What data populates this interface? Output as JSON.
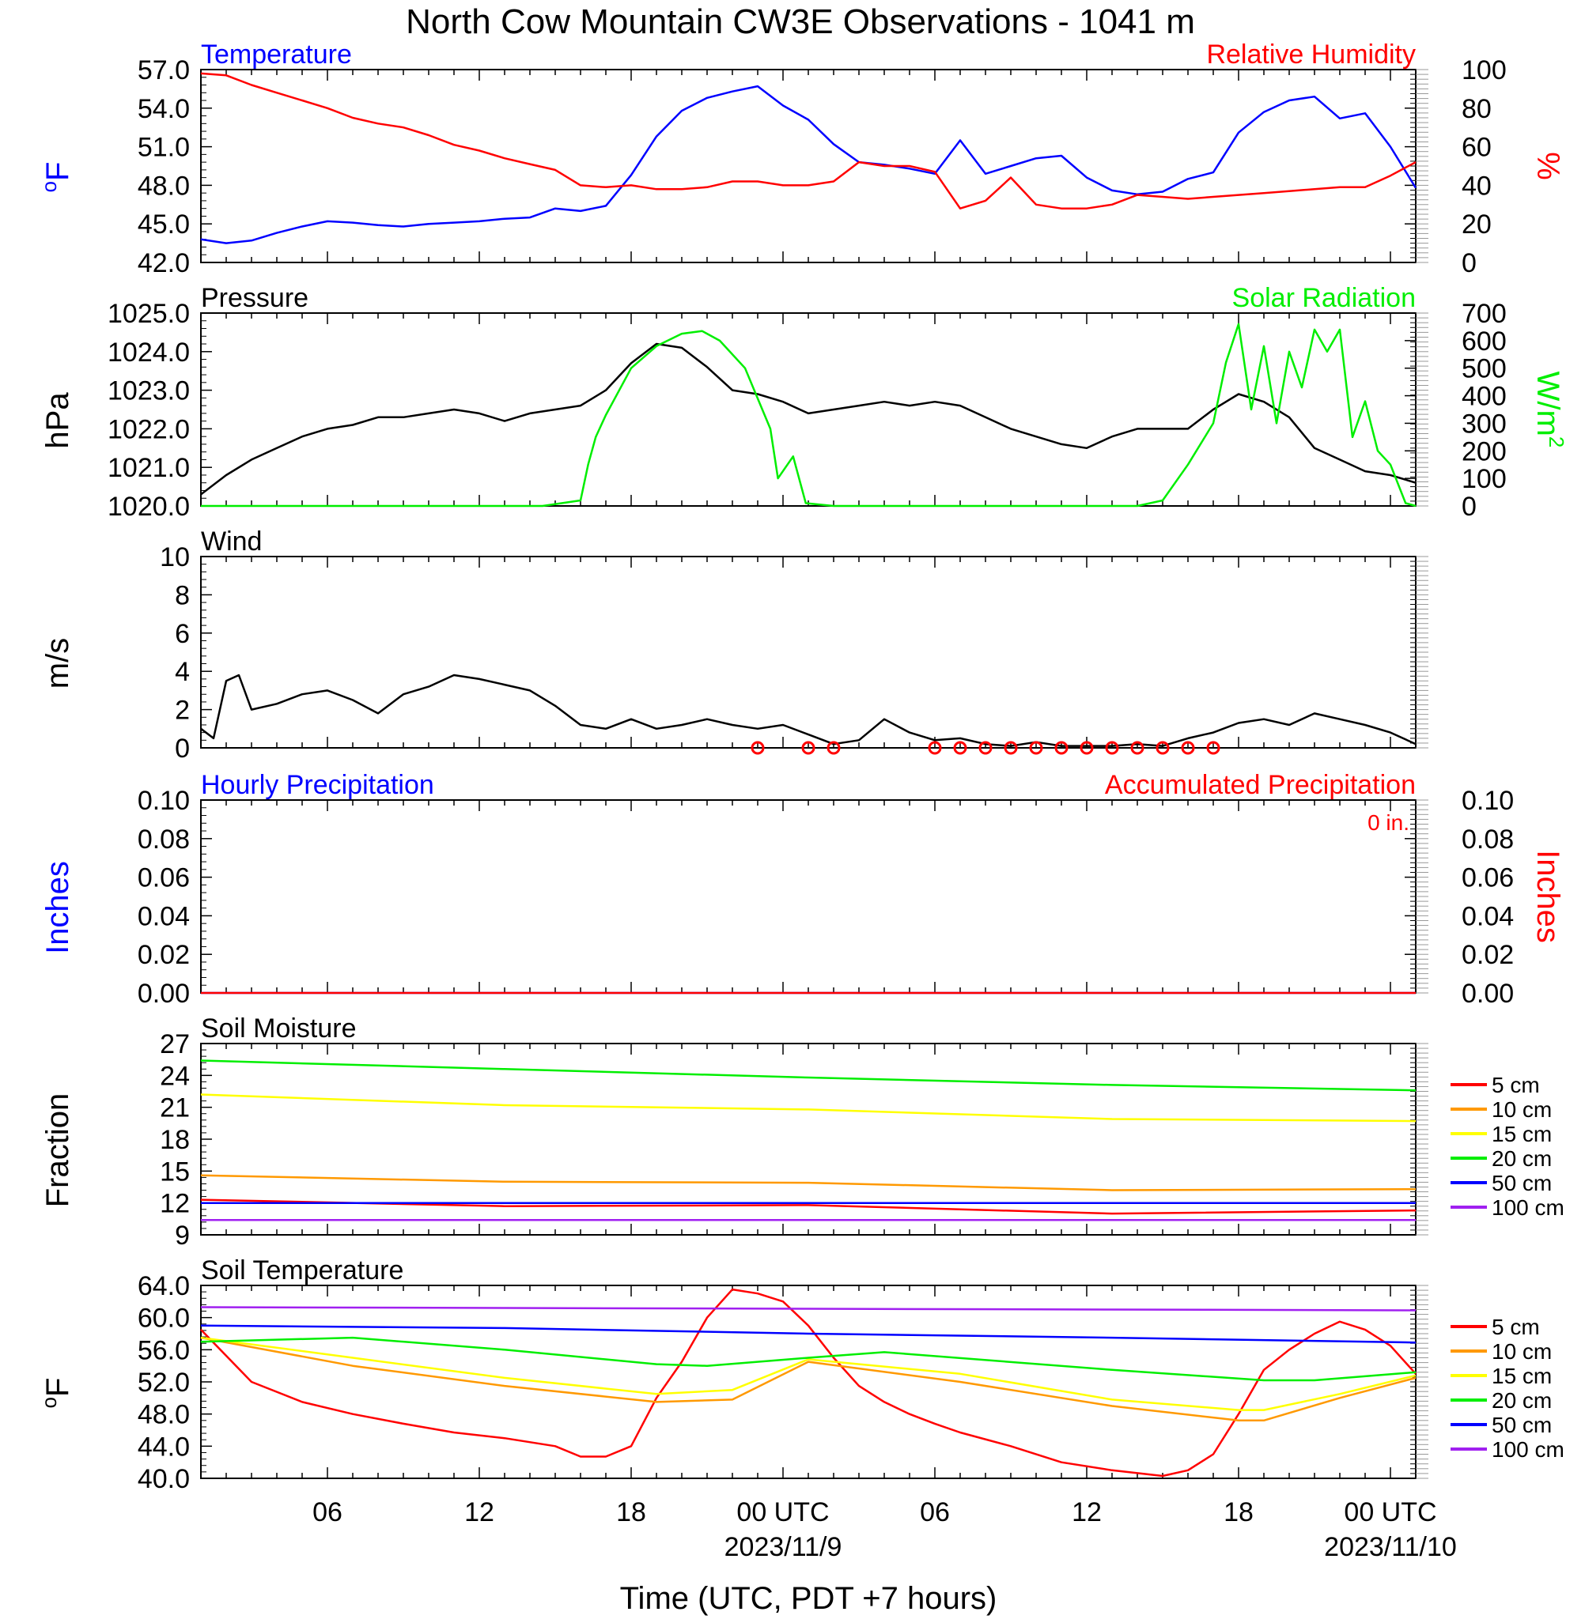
{
  "title": "North Cow Mountain CW3E Observations - 1041 m",
  "colors": {
    "blue": "#0000ff",
    "red": "#ff0000",
    "green": "#00ee00",
    "black": "#000000",
    "orange": "#ff9900",
    "yellow": "#ffff00",
    "purple": "#a020f0"
  },
  "chart_data": [
    {
      "type": "line",
      "panel": "temperature-humidity",
      "title_left": "Temperature",
      "title_right": "Relative Humidity",
      "ylabel_left": "oF",
      "ylabel_right": "%",
      "ylim_left": [
        42,
        57
      ],
      "ylim_right": [
        0,
        100
      ],
      "yticks_left": [
        "42.0",
        "45.0",
        "48.0",
        "51.0",
        "54.0",
        "57.0"
      ],
      "yticks_right": [
        "0",
        "20",
        "40",
        "60",
        "80",
        "100"
      ],
      "series": [
        {
          "name": "Temperature",
          "axis": "left",
          "color": "#0000ff",
          "x": [
            0,
            1,
            2,
            3,
            4,
            5,
            6,
            7,
            8,
            9,
            10,
            11,
            12,
            13,
            14,
            15,
            16,
            17,
            18,
            19,
            20,
            21,
            22,
            23,
            24,
            25,
            26,
            27,
            28,
            29,
            30,
            31,
            32,
            33,
            34,
            35,
            36,
            37,
            38,
            39,
            40,
            41,
            42,
            43,
            44,
            45,
            46,
            47,
            48
          ],
          "y": [
            43.8,
            43.5,
            43.7,
            44.3,
            44.8,
            45.2,
            45.1,
            44.9,
            44.8,
            45.0,
            45.1,
            45.2,
            45.4,
            45.5,
            46.2,
            46.0,
            46.4,
            48.8,
            51.8,
            53.8,
            54.8,
            55.3,
            55.7,
            54.2,
            53.1,
            51.2,
            49.8,
            49.6,
            49.3,
            48.9,
            51.5,
            48.9,
            49.5,
            50.1,
            50.3,
            48.6,
            47.6,
            47.3,
            47.5,
            48.5,
            49.0,
            52.1,
            53.7,
            54.6,
            54.9,
            53.2,
            53.6,
            51.0,
            47.8
          ]
        },
        {
          "name": "Relative Humidity",
          "axis": "right",
          "color": "#ff0000",
          "x": [
            0,
            1,
            2,
            3,
            4,
            5,
            6,
            7,
            8,
            9,
            10,
            11,
            12,
            13,
            14,
            15,
            16,
            17,
            18,
            19,
            20,
            21,
            22,
            23,
            24,
            25,
            26,
            27,
            28,
            29,
            30,
            31,
            32,
            33,
            34,
            35,
            36,
            37,
            38,
            39,
            40,
            41,
            42,
            43,
            44,
            45,
            46,
            47,
            48
          ],
          "y": [
            98,
            97,
            92,
            88,
            84,
            80,
            75,
            72,
            70,
            66,
            61,
            58,
            54,
            51,
            48,
            40,
            39,
            40,
            38,
            38,
            39,
            42,
            42,
            40,
            40,
            42,
            52,
            50,
            50,
            47,
            28,
            32,
            44,
            30,
            28,
            28,
            30,
            35,
            34,
            33,
            34,
            35,
            36,
            37,
            38,
            39,
            39,
            45,
            52
          ]
        }
      ]
    },
    {
      "type": "line",
      "panel": "pressure-solar",
      "title_left": "Pressure",
      "title_right": "Solar Radiation",
      "ylabel_left": "hPa",
      "ylabel_right": "W/m2",
      "ylim_left": [
        1020,
        1025
      ],
      "ylim_right": [
        0,
        700
      ],
      "yticks_left": [
        "1020.0",
        "1021.0",
        "1022.0",
        "1023.0",
        "1024.0",
        "1025.0"
      ],
      "yticks_right": [
        "0",
        "100",
        "200",
        "300",
        "400",
        "500",
        "600",
        "700"
      ],
      "series": [
        {
          "name": "Pressure",
          "axis": "left",
          "color": "#000000",
          "x": [
            0,
            1,
            2,
            3,
            4,
            5,
            6,
            7,
            8,
            9,
            10,
            11,
            12,
            13,
            14,
            15,
            16,
            17,
            18,
            19,
            20,
            21,
            22,
            23,
            24,
            25,
            26,
            27,
            28,
            29,
            30,
            31,
            32,
            33,
            34,
            35,
            36,
            37,
            38,
            39,
            40,
            41,
            42,
            43,
            44,
            45,
            46,
            47,
            48
          ],
          "y": [
            1020.3,
            1020.8,
            1021.2,
            1021.5,
            1021.8,
            1022.0,
            1022.1,
            1022.3,
            1022.3,
            1022.4,
            1022.5,
            1022.4,
            1022.2,
            1022.4,
            1022.5,
            1022.6,
            1023.0,
            1023.7,
            1024.2,
            1024.1,
            1023.6,
            1023.0,
            1022.9,
            1022.7,
            1022.4,
            1022.5,
            1022.6,
            1022.7,
            1022.6,
            1022.7,
            1022.6,
            1022.3,
            1022.0,
            1021.8,
            1021.6,
            1021.5,
            1021.8,
            1022.0,
            1022.0,
            1022.0,
            1022.5,
            1022.9,
            1022.7,
            1022.3,
            1021.5,
            1021.2,
            1020.9,
            1020.8,
            1020.6
          ]
        },
        {
          "name": "Solar Radiation",
          "axis": "right",
          "color": "#00ee00",
          "x": [
            0,
            13.5,
            15,
            15.3,
            15.6,
            16,
            17,
            18,
            19,
            19.8,
            20.5,
            21.5,
            22.5,
            22.8,
            23.4,
            23.9,
            25,
            37,
            38,
            39,
            40,
            40.5,
            41,
            41.5,
            42,
            42.5,
            43,
            43.5,
            44,
            44.5,
            45,
            45.5,
            46,
            46.5,
            47,
            47.6,
            48
          ],
          "y": [
            0,
            0,
            20,
            150,
            250,
            330,
            500,
            580,
            625,
            635,
            600,
            500,
            280,
            100,
            180,
            10,
            0,
            0,
            20,
            150,
            300,
            520,
            660,
            350,
            580,
            300,
            560,
            430,
            640,
            560,
            640,
            250,
            380,
            200,
            150,
            10,
            0
          ]
        }
      ]
    },
    {
      "type": "line",
      "panel": "wind",
      "title_left": "Wind",
      "ylabel_left": "m/s",
      "ylim_left": [
        0,
        10
      ],
      "yticks_left": [
        "0",
        "2",
        "4",
        "6",
        "8",
        "10"
      ],
      "series": [
        {
          "name": "Wind",
          "axis": "left",
          "color": "#000000",
          "x": [
            0,
            0.5,
            1,
            1.5,
            2,
            3,
            4,
            5,
            6,
            7,
            8,
            9,
            10,
            11,
            12,
            13,
            14,
            15,
            16,
            17,
            18,
            19,
            20,
            21,
            22,
            23,
            24,
            25,
            26,
            27,
            28,
            29,
            30,
            31,
            32,
            33,
            34,
            35,
            36,
            37,
            38,
            39,
            40,
            41,
            42,
            43,
            44,
            45,
            46,
            47,
            48
          ],
          "y": [
            1.0,
            0.5,
            3.5,
            3.8,
            2.0,
            2.3,
            2.8,
            3.0,
            2.5,
            1.8,
            2.8,
            3.2,
            3.8,
            3.6,
            3.3,
            3.0,
            2.2,
            1.2,
            1.0,
            1.5,
            1.0,
            1.2,
            1.5,
            1.2,
            1.0,
            1.2,
            0.7,
            0.2,
            0.4,
            1.5,
            0.8,
            0.4,
            0.5,
            0.2,
            0.1,
            0.3,
            0.1,
            0.1,
            0.1,
            0.2,
            0.1,
            0.5,
            0.8,
            1.3,
            1.5,
            1.2,
            1.8,
            1.5,
            1.2,
            0.8,
            0.2
          ]
        }
      ]
    },
    {
      "type": "line",
      "panel": "precipitation",
      "title_left": "Hourly Precipitation",
      "title_right": "Accumulated Precipitation",
      "annotation": "0 in.",
      "ylabel_left": "Inches",
      "ylabel_right": "Inches",
      "ylim_left": [
        0,
        0.1
      ],
      "ylim_right": [
        0,
        0.1
      ],
      "yticks_left": [
        "0.00",
        "0.02",
        "0.04",
        "0.06",
        "0.08",
        "0.10"
      ],
      "yticks_right": [
        "0.00",
        "0.02",
        "0.04",
        "0.06",
        "0.08",
        "0.10"
      ],
      "series": [
        {
          "name": "Hourly Precipitation",
          "axis": "left",
          "color": "#0000ff",
          "x": [
            0,
            48
          ],
          "y": [
            0,
            0
          ]
        },
        {
          "name": "Accumulated Precipitation",
          "axis": "right",
          "color": "#ff0000",
          "x": [
            0,
            48
          ],
          "y": [
            0,
            0
          ]
        }
      ]
    },
    {
      "type": "line",
      "panel": "soil-moisture",
      "title_left": "Soil Moisture",
      "ylabel_left": "Fraction",
      "ylim_left": [
        9,
        27
      ],
      "yticks_left": [
        "9",
        "12",
        "15",
        "18",
        "21",
        "24",
        "27"
      ],
      "series": [
        {
          "name": "5 cm",
          "color": "#ff0000",
          "x": [
            0,
            12,
            24,
            36,
            48
          ],
          "y": [
            12.3,
            11.7,
            11.8,
            11.0,
            11.3
          ]
        },
        {
          "name": "10 cm",
          "color": "#ff9900",
          "x": [
            0,
            12,
            24,
            36,
            48
          ],
          "y": [
            14.6,
            14.0,
            13.9,
            13.2,
            13.3
          ]
        },
        {
          "name": "15 cm",
          "color": "#ffff00",
          "x": [
            0,
            12,
            24,
            36,
            48
          ],
          "y": [
            22.2,
            21.2,
            20.8,
            19.9,
            19.7
          ]
        },
        {
          "name": "20 cm",
          "color": "#00ee00",
          "x": [
            0,
            12,
            24,
            36,
            48
          ],
          "y": [
            25.4,
            24.6,
            23.8,
            23.1,
            22.6
          ]
        },
        {
          "name": "50 cm",
          "color": "#0000ff",
          "x": [
            0,
            12,
            24,
            36,
            48
          ],
          "y": [
            12.0,
            12.0,
            12.0,
            12.0,
            12.0
          ]
        },
        {
          "name": "100 cm",
          "color": "#a020f0",
          "x": [
            0,
            12,
            24,
            36,
            48
          ],
          "y": [
            10.4,
            10.4,
            10.4,
            10.4,
            10.4
          ]
        }
      ]
    },
    {
      "type": "line",
      "panel": "soil-temperature",
      "title_left": "Soil Temperature",
      "ylabel_left": "oF",
      "ylim_left": [
        40,
        64
      ],
      "yticks_left": [
        "40.0",
        "44.0",
        "48.0",
        "52.0",
        "56.0",
        "60.0",
        "64.0"
      ],
      "series": [
        {
          "name": "5 cm",
          "color": "#ff0000",
          "x": [
            0,
            2,
            4,
            6,
            8,
            10,
            12,
            14,
            15,
            16,
            17,
            18,
            19,
            20,
            21,
            22,
            23,
            24,
            25,
            26,
            27,
            28,
            29,
            30,
            32,
            34,
            36,
            38,
            39,
            40,
            41,
            42,
            43,
            44,
            45,
            46,
            47,
            48
          ],
          "y": [
            58.5,
            52.0,
            49.5,
            48.0,
            46.8,
            45.7,
            45.0,
            44.0,
            42.7,
            42.7,
            44.0,
            50.0,
            54.5,
            60.0,
            63.5,
            63.0,
            62.0,
            59.0,
            55.0,
            51.5,
            49.5,
            48.0,
            46.8,
            45.7,
            44.0,
            42.0,
            41.0,
            40.3,
            41.0,
            43.0,
            48.0,
            53.5,
            56.0,
            58.0,
            59.5,
            58.5,
            56.5,
            53.0
          ]
        },
        {
          "name": "10 cm",
          "color": "#ff9900",
          "x": [
            0,
            6,
            12,
            18,
            21,
            24,
            30,
            36,
            41,
            42,
            45,
            48
          ],
          "y": [
            57.5,
            54.0,
            51.5,
            49.5,
            49.8,
            54.5,
            52.0,
            49.0,
            47.2,
            47.2,
            50.0,
            52.5
          ]
        },
        {
          "name": "15 cm",
          "color": "#ffff00",
          "x": [
            0,
            6,
            12,
            18,
            21,
            24,
            30,
            36,
            41,
            42,
            45,
            48
          ],
          "y": [
            57.5,
            55.0,
            52.5,
            50.5,
            51.0,
            54.8,
            53.0,
            49.8,
            48.5,
            48.5,
            50.5,
            52.8
          ]
        },
        {
          "name": "20 cm",
          "color": "#00ee00",
          "x": [
            0,
            6,
            12,
            18,
            20,
            24,
            27,
            36,
            42,
            44,
            48
          ],
          "y": [
            57.0,
            57.5,
            56.0,
            54.2,
            54.0,
            55.0,
            55.7,
            53.5,
            52.2,
            52.2,
            53.2
          ]
        },
        {
          "name": "50 cm",
          "color": "#0000ff",
          "x": [
            0,
            12,
            24,
            36,
            48
          ],
          "y": [
            59.0,
            58.7,
            58.0,
            57.5,
            56.9
          ]
        },
        {
          "name": "100 cm",
          "color": "#a020f0",
          "x": [
            0,
            12,
            24,
            36,
            48
          ],
          "y": [
            61.3,
            61.2,
            61.1,
            61.0,
            60.9
          ]
        }
      ]
    }
  ],
  "x_axis": {
    "ticks": [
      {
        "x": 5,
        "label": "06"
      },
      {
        "x": 11,
        "label": "12"
      },
      {
        "x": 17,
        "label": "18"
      },
      {
        "x": 23,
        "label": "00 UTC",
        "date": "2023/11/9"
      },
      {
        "x": 29,
        "label": "06"
      },
      {
        "x": 35,
        "label": "12"
      },
      {
        "x": 41,
        "label": "18"
      },
      {
        "x": 47,
        "label": "00 UTC",
        "date": "2023/11/10"
      }
    ],
    "xlim": [
      0,
      48
    ],
    "xlabel": "Time (UTC, PDT +7 hours)"
  },
  "calm_markers": [
    22,
    24,
    25,
    29,
    30,
    31,
    32,
    33,
    34,
    35,
    36,
    37,
    38,
    39,
    40
  ],
  "legend": {
    "items": [
      {
        "name": "5 cm",
        "color": "#ff0000"
      },
      {
        "name": "10 cm",
        "color": "#ff9900"
      },
      {
        "name": "15 cm",
        "color": "#ffff00"
      },
      {
        "name": "20 cm",
        "color": "#00ee00"
      },
      {
        "name": "50 cm",
        "color": "#0000ff"
      },
      {
        "name": "100 cm",
        "color": "#a020f0"
      }
    ]
  }
}
